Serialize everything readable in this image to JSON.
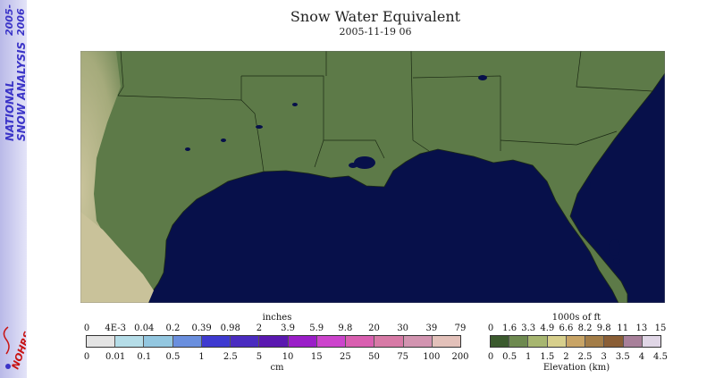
{
  "sidebar": {
    "line1": "NATIONAL",
    "line2": "SNOW ANALYSIS",
    "year1": "2005-",
    "year2": "2006",
    "logo_text": "NOHRSC"
  },
  "title": "Snow Water Equivalent",
  "subtitle": "2005-11-19 06",
  "swe_legend": {
    "unit_top": "inches",
    "unit_bottom": "cm",
    "inches": [
      "0",
      "4E-3",
      "0.04",
      "0.2",
      "0.39",
      "0.98",
      "2",
      "3.9",
      "5.9",
      "9.8",
      "20",
      "30",
      "39",
      "79"
    ],
    "cm": [
      "0",
      "0.01",
      "0.1",
      "0.5",
      "1",
      "2.5",
      "5",
      "10",
      "15",
      "25",
      "50",
      "75",
      "100",
      "200"
    ],
    "colors": [
      "#e4e4e4",
      "#b5dde8",
      "#93c7e0",
      "#6a8fde",
      "#3e3ad0",
      "#4a2cc0",
      "#5a18b0",
      "#9a1ec8",
      "#cc44cc",
      "#d95fb0",
      "#d77aa6",
      "#d294b0",
      "#e3c1ba"
    ]
  },
  "elev_legend": {
    "unit_top": "1000s of ft",
    "unit_bottom": "Elevation (km)",
    "feet": [
      "0",
      "1.6",
      "3.3",
      "4.9",
      "6.6",
      "8.2",
      "9.8",
      "11",
      "13",
      "15"
    ],
    "km": [
      "0",
      "0.5",
      "1",
      "1.5",
      "2",
      "2.5",
      "3",
      "3.5",
      "4",
      "4.5"
    ],
    "colors": [
      "#3b5a2e",
      "#6e8a50",
      "#a7b670",
      "#d7cf8c",
      "#c8a466",
      "#a37d48",
      "#8a5e36",
      "#a8809a",
      "#e0d6e6"
    ]
  },
  "map": {
    "land_color": "#5d7a48",
    "water_color": "#07104a",
    "arid_color": "#c9c29a",
    "border_color": "#1c2a14"
  }
}
